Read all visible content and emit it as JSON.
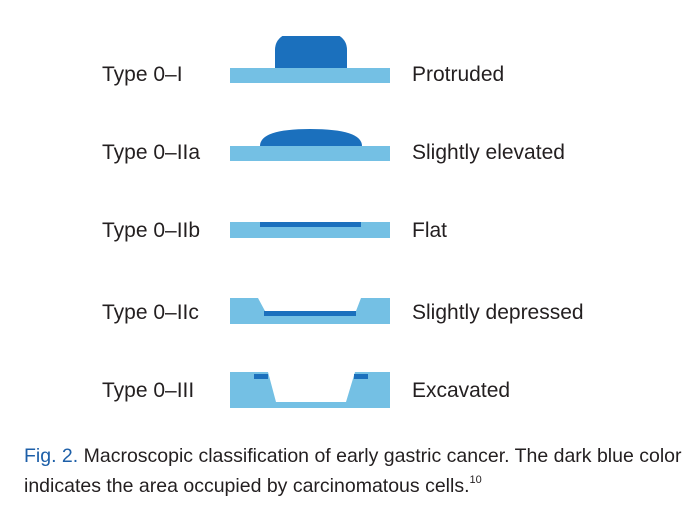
{
  "rows": [
    {
      "type": "Type 0–I",
      "description": "Protruded",
      "shape": "protruded"
    },
    {
      "type": "Type 0–IIa",
      "description": "Slightly elevated",
      "shape": "slightly-elevated"
    },
    {
      "type": "Type 0–IIb",
      "description": "Flat",
      "shape": "flat"
    },
    {
      "type": "Type 0–IIc",
      "description": "Slightly depressed",
      "shape": "slightly-depressed"
    },
    {
      "type": "Type 0–III",
      "description": "Excavated",
      "shape": "excavated"
    }
  ],
  "caption": {
    "label": "Fig. 2.",
    "text": "Macroscopic classification of early gastric cancer. The dark blue color indicates the area occupied by carcinomatous cells.",
    "reference": "10"
  },
  "colors": {
    "mucosa": "#74c0e4",
    "carcinoma": "#1b70bd",
    "figure_label": "#1d5fa8"
  }
}
